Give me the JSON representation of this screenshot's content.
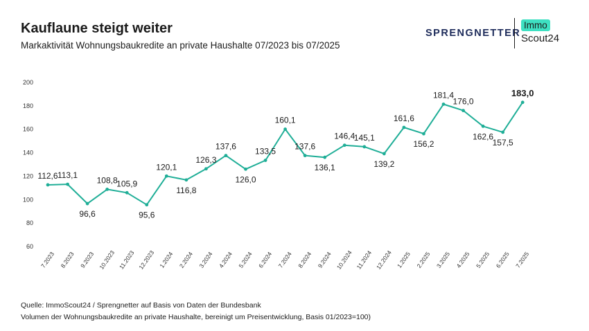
{
  "header": {
    "title": "Kauflaune steigt weiter",
    "subtitle": "Markaktivität Wohnungsbaukredite an private Haushalte 07/2023 bis 07/2025"
  },
  "logos": {
    "sprengnetter": "SPRENGNETTER",
    "immo": "Immo",
    "scout": "Scout24"
  },
  "footer": {
    "source": "Quelle: ImmoScout24 / Sprengnetter auf Basis von Daten der Bundesbank",
    "note": "Volumen der Wohnungsbaukredite an private Haushalte, bereinigt um Preisentwicklung, Basis 01/2023=100)"
  },
  "colors": {
    "line": "#1fae97",
    "accent": "#3ee0c2",
    "brand": "#1d2b5a"
  },
  "chart_data": {
    "type": "line",
    "categories": [
      "7.2023",
      "8.2023",
      "9.2023",
      "10.2023",
      "11.2023",
      "12.2023",
      "1.2024",
      "2.2024",
      "3.2024",
      "4.2024",
      "5.2024",
      "6.2024",
      "7.2024",
      "8.2024",
      "9.2024",
      "10.2024",
      "11.2024",
      "12.2024",
      "1.2025",
      "2.2025",
      "3.2025",
      "4.2025",
      "5.2025",
      "6.2025",
      "7.2025"
    ],
    "values": [
      112.6,
      113.1,
      96.6,
      108.8,
      105.9,
      95.6,
      120.1,
      116.8,
      126.3,
      137.6,
      126.0,
      133.5,
      160.1,
      137.6,
      136.1,
      146.4,
      145.1,
      139.2,
      161.6,
      156.2,
      181.4,
      176.0,
      162.6,
      157.5,
      183.0
    ],
    "value_labels": [
      "112,6",
      "113,1",
      "96,6",
      "108,8",
      "105,9",
      "95,6",
      "120,1",
      "116,8",
      "126,3",
      "137,6",
      "126,0",
      "133,5",
      "160,1",
      "137,6",
      "136,1",
      "146,4",
      "145,1",
      "139,2",
      "161,6",
      "156,2",
      "181,4",
      "176,0",
      "162,6",
      "157,5",
      "183,0"
    ],
    "label_position": [
      "above",
      "above",
      "below",
      "above",
      "above",
      "below",
      "above",
      "below",
      "above",
      "above",
      "below",
      "above",
      "above",
      "above",
      "below",
      "above",
      "above",
      "below",
      "above",
      "below",
      "above",
      "above",
      "below",
      "below",
      "above"
    ],
    "highlight_last": true,
    "yticks": [
      60,
      80,
      100,
      120,
      140,
      160,
      180,
      200
    ],
    "ylim": [
      60,
      200
    ],
    "grid": false,
    "xlabel": "",
    "ylabel": ""
  }
}
